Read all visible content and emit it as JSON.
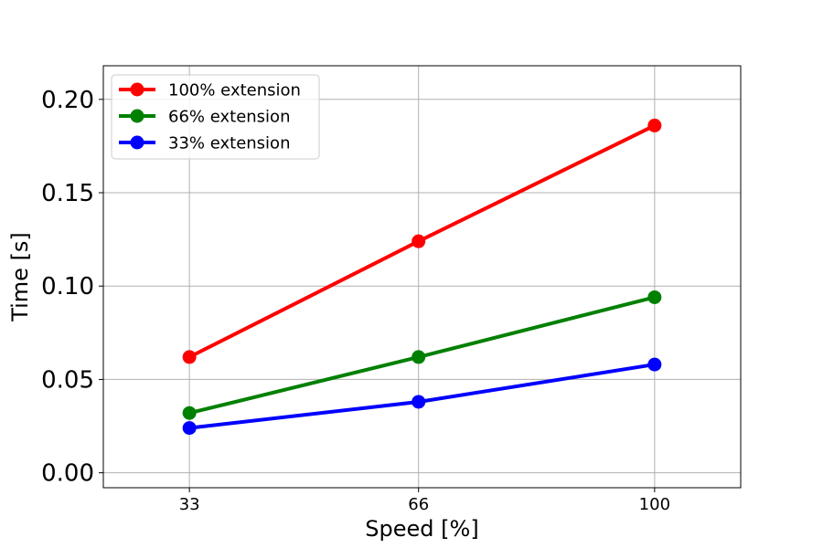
{
  "chart_data": {
    "type": "line",
    "title": "",
    "xlabel": "Speed [%]",
    "ylabel": "Time [s]",
    "x": [
      33,
      66,
      100
    ],
    "x_tick_labels": [
      "33",
      "66",
      "100"
    ],
    "y_ticks": [
      0.0,
      0.05,
      0.1,
      0.15,
      0.2
    ],
    "y_tick_labels": [
      "0.00",
      "0.05",
      "0.10",
      "0.15",
      "0.20"
    ],
    "xlim": [
      20.6,
      112.4
    ],
    "ylim": [
      -0.008,
      0.218
    ],
    "grid": true,
    "legend_position": "upper left",
    "series": [
      {
        "name": "100% extension",
        "color": "#ff0000",
        "values": [
          0.062,
          0.124,
          0.186
        ]
      },
      {
        "name": "66% extension",
        "color": "#008000",
        "values": [
          0.032,
          0.062,
          0.094
        ]
      },
      {
        "name": "33% extension",
        "color": "#0000ff",
        "values": [
          0.024,
          0.038,
          0.058
        ]
      }
    ]
  }
}
